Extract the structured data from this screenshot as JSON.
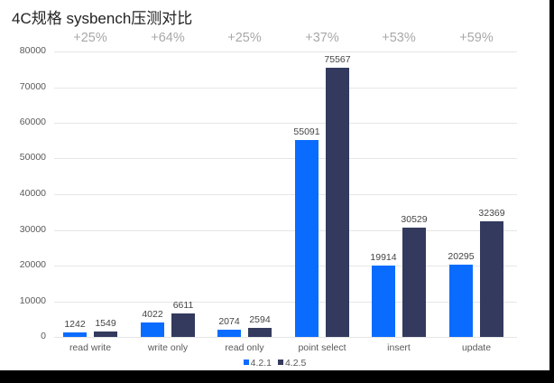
{
  "title": "4C规格 sysbench压测对比",
  "chart_data": {
    "type": "bar",
    "title": "4C规格 sysbench压测对比",
    "xlabel": "",
    "ylabel": "",
    "ylim": [
      0,
      80000
    ],
    "yticks": [
      0,
      10000,
      20000,
      30000,
      40000,
      50000,
      60000,
      70000,
      80000
    ],
    "grid": true,
    "legend_position": "bottom",
    "categories": [
      "read write",
      "write only",
      "read only",
      "point select",
      "insert",
      "update"
    ],
    "series": [
      {
        "name": "4.2.1",
        "color": "#0a6cff",
        "values": [
          1242,
          4022,
          2074,
          55091,
          19914,
          20295
        ]
      },
      {
        "name": "4.2.5",
        "color": "#333a5e",
        "values": [
          1549,
          6611,
          2594,
          75567,
          30529,
          32369
        ]
      }
    ],
    "annotations": [
      "+25%",
      "+64%",
      "+25%",
      "+37%",
      "+53%",
      "+59%"
    ]
  },
  "yticks_labels": [
    "80000",
    "70000",
    "60000",
    "50000",
    "40000",
    "30000",
    "20000",
    "10000",
    "0"
  ],
  "legend": [
    {
      "label": "4.2.1",
      "color": "#0a6cff"
    },
    {
      "label": "4.2.5",
      "color": "#333a5e"
    }
  ]
}
